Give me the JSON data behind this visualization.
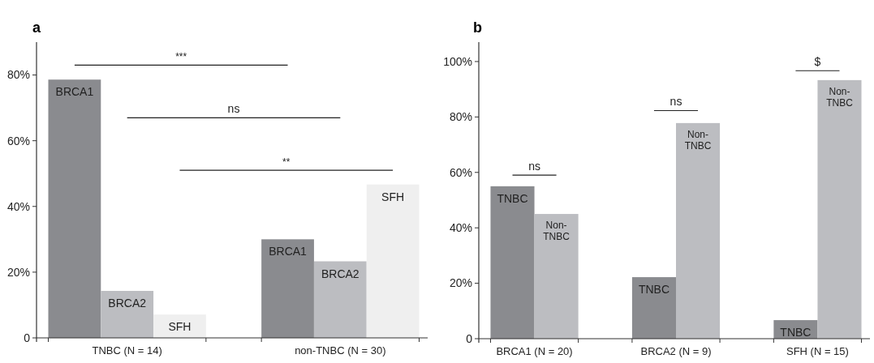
{
  "chart_data": [
    {
      "type": "bar",
      "title": "a",
      "categories": [
        "TNBC (N = 14)",
        "non-TNBC (N = 30)"
      ],
      "series": [
        {
          "name": "BRCA1",
          "color": "#8a8b8f",
          "values": [
            78.6,
            30
          ]
        },
        {
          "name": "BRCA2",
          "color": "#bcbdc1",
          "values": [
            14.3,
            23.3
          ]
        },
        {
          "name": "SFH",
          "color": "#efefef",
          "values": [
            7.1,
            46.7
          ]
        }
      ],
      "ylim": [
        0,
        90
      ],
      "yticks": [
        0,
        {
          "value": 20,
          "label": "20%"
        },
        {
          "value": 40,
          "label": "40%"
        },
        {
          "value": 60,
          "label": "60%"
        },
        {
          "value": 80,
          "label": "80%"
        }
      ],
      "grid": false,
      "annotations": [
        "***",
        "ns",
        "**"
      ]
    },
    {
      "type": "bar",
      "title": "b",
      "categories": [
        "BRCA1 (N = 20)",
        "BRCA2 (N = 9)",
        "SFH (N = 15)"
      ],
      "series": [
        {
          "name": "TNBC",
          "color": "#8a8b8f",
          "values": [
            55,
            22.2,
            6.7
          ]
        },
        {
          "name": "Non-TNBC",
          "color": "#bcbdc1",
          "values": [
            45,
            77.8,
            93.3
          ]
        }
      ],
      "ylim": [
        0,
        107
      ],
      "yticks": [
        0,
        {
          "value": 20,
          "label": "20%"
        },
        {
          "value": 40,
          "label": "40%"
        },
        {
          "value": 60,
          "label": "60%"
        },
        {
          "value": 80,
          "label": "80%"
        },
        {
          "value": 100,
          "label": "100%"
        }
      ],
      "grid": false,
      "annotations": [
        "ns",
        "ns",
        "$"
      ]
    }
  ]
}
